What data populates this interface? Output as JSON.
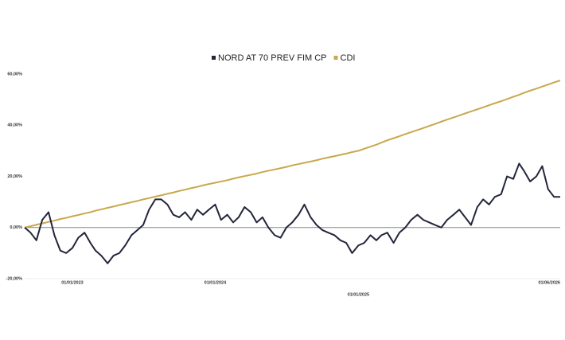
{
  "chart_data": {
    "type": "line",
    "x": [
      "01/09/2022",
      "16/09/2022",
      "01/10/2022",
      "16/10/2022",
      "01/11/2022",
      "16/11/2022",
      "01/12/2022",
      "16/12/2022",
      "01/01/2023",
      "16/01/2023",
      "01/02/2023",
      "16/02/2023",
      "01/03/2023",
      "16/03/2023",
      "01/04/2023",
      "16/04/2023",
      "01/05/2023",
      "16/05/2023",
      "01/06/2023",
      "16/06/2023",
      "01/07/2023",
      "16/07/2023",
      "01/08/2023",
      "16/08/2023",
      "01/09/2023",
      "16/09/2023",
      "01/10/2023",
      "16/10/2023",
      "01/11/2023",
      "16/11/2023",
      "01/12/2023",
      "16/12/2023",
      "01/01/2024",
      "16/01/2024",
      "01/02/2024",
      "16/02/2024",
      "01/03/2024",
      "16/03/2024",
      "01/04/2024",
      "16/04/2024",
      "01/05/2024",
      "16/05/2024",
      "01/06/2024",
      "16/06/2024",
      "01/07/2024",
      "16/07/2024",
      "01/08/2024",
      "16/08/2024",
      "01/09/2024",
      "16/09/2024",
      "01/10/2024",
      "16/10/2024",
      "01/11/2024",
      "16/11/2024",
      "01/12/2024",
      "16/12/2024",
      "01/01/2025",
      "16/01/2025",
      "01/02/2025",
      "16/02/2025",
      "01/03/2025",
      "16/03/2025",
      "01/04/2025",
      "16/04/2025",
      "01/05/2025",
      "16/05/2025",
      "01/06/2025",
      "16/06/2025",
      "01/07/2025",
      "16/07/2025",
      "01/08/2025",
      "16/08/2025",
      "01/09/2025",
      "16/09/2025",
      "01/10/2025",
      "16/10/2025",
      "01/11/2025",
      "16/11/2025",
      "01/12/2025",
      "16/12/2025",
      "01/01/2026",
      "16/01/2026",
      "01/02/2026",
      "16/02/2026",
      "01/03/2026",
      "16/03/2026",
      "01/04/2026",
      "16/04/2026",
      "01/05/2026",
      "16/05/2026",
      "01/06/2026"
    ],
    "series": [
      {
        "name": "NORD AT 70 PREV FIM CP",
        "color": "#23253b",
        "values": [
          0,
          -2,
          -5,
          3,
          6,
          -3,
          -9,
          -10,
          -8,
          -4,
          -2,
          -6,
          -9,
          -11,
          -14,
          -11,
          -10,
          -7,
          -3,
          -1,
          1,
          7,
          11,
          11,
          9,
          5,
          4,
          6,
          3,
          7,
          5,
          7,
          9,
          3,
          5,
          2,
          4,
          8,
          6,
          2,
          4,
          0,
          -3,
          -4,
          0,
          2,
          5,
          9,
          4,
          1,
          -1,
          -2,
          -3,
          -5,
          -6,
          -10,
          -7,
          -6,
          -3,
          -5,
          -3,
          -2,
          -6,
          -2,
          0,
          3,
          5,
          3,
          2,
          1,
          0,
          3,
          5,
          7,
          4,
          1,
          8,
          11,
          9,
          12,
          13,
          20,
          19,
          25,
          22,
          18,
          20,
          24,
          15,
          12,
          12
        ]
      },
      {
        "name": "CDI",
        "color": "#c9a84c",
        "values": [
          0,
          0.5,
          1.1,
          1.6,
          2.2,
          2.7,
          3.3,
          3.8,
          4.4,
          4.9,
          5.5,
          6.0,
          6.6,
          7.1,
          7.7,
          8.2,
          8.8,
          9.3,
          9.9,
          10.4,
          11.0,
          11.5,
          12.1,
          12.6,
          13.2,
          13.7,
          14.3,
          14.8,
          15.4,
          15.9,
          16.5,
          17.0,
          17.5,
          18.0,
          18.5,
          19.1,
          19.6,
          20.1,
          20.6,
          21.1,
          21.7,
          22.2,
          22.7,
          23.2,
          23.7,
          24.3,
          24.8,
          25.3,
          25.8,
          26.3,
          26.9,
          27.4,
          27.9,
          28.4,
          28.9,
          29.5,
          30.0,
          30.8,
          31.6,
          32.4,
          33.2,
          34.1,
          34.9,
          35.7,
          36.5,
          37.3,
          38.1,
          38.9,
          39.7,
          40.5,
          41.4,
          42.2,
          43.0,
          43.8,
          44.6,
          45.4,
          46.2,
          47.0,
          47.8,
          48.6,
          49.4,
          50.2,
          51.1,
          51.9,
          52.7,
          53.5,
          54.3,
          55.1,
          55.9,
          56.7,
          57.5
        ]
      }
    ],
    "xlim": [
      "01/09/2022",
      "01/06/2026"
    ],
    "xticks": [
      "01/01/2023",
      "01/01/2024",
      "01/01/2025",
      "01/06/2026"
    ],
    "ylim": [
      -20,
      60
    ],
    "yticks": [
      {
        "value": -20,
        "label": "-20,00%"
      },
      {
        "value": 0,
        "label": "0,00%"
      },
      {
        "value": 20,
        "label": "20,00%"
      },
      {
        "value": 40,
        "label": "40,00%"
      },
      {
        "value": 60,
        "label": "60,00%"
      }
    ],
    "zero_line": true
  }
}
